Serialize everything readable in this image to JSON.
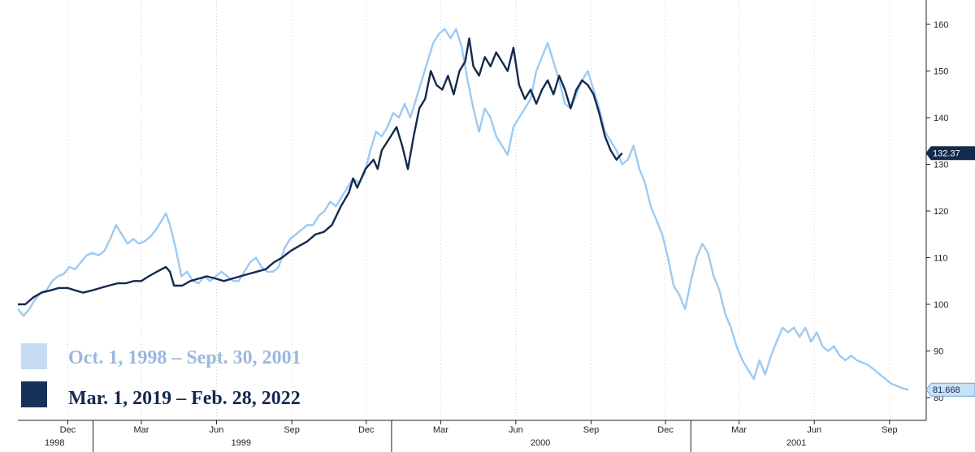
{
  "chart_data": {
    "type": "line",
    "title": "",
    "xlabel": "",
    "ylabel": "",
    "x_range": [
      "1998-10-01",
      "2001-09-30"
    ],
    "ylim": [
      78,
      168
    ],
    "y_ticks": [
      80,
      90,
      100,
      110,
      120,
      130,
      140,
      150,
      160
    ],
    "x_month_ticks": [
      {
        "label": "Dec",
        "date": "1998-12-01"
      },
      {
        "label": "Mar",
        "date": "1999-03-01"
      },
      {
        "label": "Jun",
        "date": "1999-06-01"
      },
      {
        "label": "Sep",
        "date": "1999-09-01"
      },
      {
        "label": "Dec",
        "date": "1999-12-01"
      },
      {
        "label": "Mar",
        "date": "2000-03-01"
      },
      {
        "label": "Jun",
        "date": "2000-06-01"
      },
      {
        "label": "Sep",
        "date": "2000-09-01"
      },
      {
        "label": "Dec",
        "date": "2000-12-01"
      },
      {
        "label": "Mar",
        "date": "2001-03-01"
      },
      {
        "label": "Jun",
        "date": "2001-06-01"
      },
      {
        "label": "Sep",
        "date": "2001-09-01"
      }
    ],
    "x_year_labels": [
      {
        "label": "1998",
        "date": "1998-11-15"
      },
      {
        "label": "1999",
        "date": "1999-07-01"
      },
      {
        "label": "2000",
        "date": "2000-07-01"
      },
      {
        "label": "2001",
        "date": "2001-05-10"
      }
    ],
    "year_separators": [
      "1999-01-01",
      "2000-01-01",
      "2001-01-01"
    ],
    "legend_position": "bottom-left",
    "series": [
      {
        "name": "Oct. 1, 1998 – Sept. 30, 2001",
        "color": "#9ccaf2",
        "legend_swatch_color": "#c5dbf2",
        "end_label": "81.668",
        "points": [
          [
            "1998-10-01",
            99
          ],
          [
            "1998-10-08",
            97.5
          ],
          [
            "1998-10-15",
            99
          ],
          [
            "1998-10-22",
            101
          ],
          [
            "1998-10-29",
            102.5
          ],
          [
            "1998-11-05",
            103
          ],
          [
            "1998-11-12",
            105
          ],
          [
            "1998-11-19",
            106
          ],
          [
            "1998-11-26",
            106.5
          ],
          [
            "1998-12-03",
            108
          ],
          [
            "1998-12-10",
            107.5
          ],
          [
            "1998-12-17",
            109
          ],
          [
            "1998-12-24",
            110.5
          ],
          [
            "1998-12-31",
            111
          ],
          [
            "1999-01-08",
            110.5
          ],
          [
            "1999-01-15",
            111.5
          ],
          [
            "1999-01-22",
            114
          ],
          [
            "1999-01-29",
            117
          ],
          [
            "1999-02-05",
            115
          ],
          [
            "1999-02-12",
            113
          ],
          [
            "1999-02-19",
            114
          ],
          [
            "1999-02-26",
            113
          ],
          [
            "1999-03-05",
            113.5
          ],
          [
            "1999-03-12",
            114.5
          ],
          [
            "1999-03-19",
            116
          ],
          [
            "1999-03-26",
            118
          ],
          [
            "1999-03-31",
            119.5
          ],
          [
            "1999-04-05",
            117
          ],
          [
            "1999-04-12",
            112
          ],
          [
            "1999-04-19",
            106
          ],
          [
            "1999-04-26",
            107
          ],
          [
            "1999-05-03",
            105
          ],
          [
            "1999-05-10",
            104.5
          ],
          [
            "1999-05-17",
            106
          ],
          [
            "1999-05-24",
            105
          ],
          [
            "1999-05-31",
            106
          ],
          [
            "1999-06-07",
            107
          ],
          [
            "1999-06-14",
            106
          ],
          [
            "1999-06-21",
            105
          ],
          [
            "1999-06-28",
            105
          ],
          [
            "1999-07-05",
            107
          ],
          [
            "1999-07-12",
            109
          ],
          [
            "1999-07-19",
            110
          ],
          [
            "1999-07-26",
            108
          ],
          [
            "1999-08-02",
            107
          ],
          [
            "1999-08-09",
            107
          ],
          [
            "1999-08-16",
            108
          ],
          [
            "1999-08-23",
            112
          ],
          [
            "1999-08-30",
            114
          ],
          [
            "1999-09-06",
            115
          ],
          [
            "1999-09-13",
            116
          ],
          [
            "1999-09-20",
            117
          ],
          [
            "1999-09-27",
            117
          ],
          [
            "1999-10-04",
            119
          ],
          [
            "1999-10-11",
            120
          ],
          [
            "1999-10-18",
            122
          ],
          [
            "1999-10-25",
            121
          ],
          [
            "1999-11-01",
            123
          ],
          [
            "1999-11-08",
            125
          ],
          [
            "1999-11-15",
            127
          ],
          [
            "1999-11-22",
            126
          ],
          [
            "1999-11-29",
            128
          ],
          [
            "1999-12-06",
            133
          ],
          [
            "1999-12-13",
            137
          ],
          [
            "1999-12-20",
            136
          ],
          [
            "1999-12-27",
            138
          ],
          [
            "2000-01-03",
            141
          ],
          [
            "2000-01-10",
            140
          ],
          [
            "2000-01-17",
            143
          ],
          [
            "2000-01-24",
            140
          ],
          [
            "2000-01-31",
            144
          ],
          [
            "2000-02-07",
            148
          ],
          [
            "2000-02-14",
            152
          ],
          [
            "2000-02-21",
            156
          ],
          [
            "2000-02-28",
            158
          ],
          [
            "2000-03-06",
            159
          ],
          [
            "2000-03-13",
            157
          ],
          [
            "2000-03-20",
            159
          ],
          [
            "2000-03-27",
            155
          ],
          [
            "2000-04-03",
            148
          ],
          [
            "2000-04-10",
            142
          ],
          [
            "2000-04-17",
            137
          ],
          [
            "2000-04-24",
            142
          ],
          [
            "2000-05-01",
            140
          ],
          [
            "2000-05-08",
            136
          ],
          [
            "2000-05-15",
            134
          ],
          [
            "2000-05-22",
            132
          ],
          [
            "2000-05-29",
            138
          ],
          [
            "2000-06-05",
            140
          ],
          [
            "2000-06-12",
            142
          ],
          [
            "2000-06-19",
            144
          ],
          [
            "2000-06-26",
            150
          ],
          [
            "2000-07-03",
            153
          ],
          [
            "2000-07-10",
            156
          ],
          [
            "2000-07-17",
            152
          ],
          [
            "2000-07-24",
            148
          ],
          [
            "2000-07-31",
            143
          ],
          [
            "2000-08-07",
            142
          ],
          [
            "2000-08-14",
            145
          ],
          [
            "2000-08-21",
            148
          ],
          [
            "2000-08-28",
            150
          ],
          [
            "2000-09-04",
            146
          ],
          [
            "2000-09-11",
            142
          ],
          [
            "2000-09-18",
            137
          ],
          [
            "2000-09-25",
            135
          ],
          [
            "2000-10-02",
            133
          ],
          [
            "2000-10-09",
            130
          ],
          [
            "2000-10-16",
            131
          ],
          [
            "2000-10-23",
            134
          ],
          [
            "2000-10-30",
            129
          ],
          [
            "2000-11-06",
            126
          ],
          [
            "2000-11-13",
            121
          ],
          [
            "2000-11-20",
            118
          ],
          [
            "2000-11-27",
            115
          ],
          [
            "2000-12-04",
            110
          ],
          [
            "2000-12-11",
            104
          ],
          [
            "2000-12-18",
            102
          ],
          [
            "2000-12-25",
            99
          ],
          [
            "2001-01-01",
            105
          ],
          [
            "2001-01-08",
            110
          ],
          [
            "2001-01-15",
            113
          ],
          [
            "2001-01-22",
            111
          ],
          [
            "2001-01-29",
            106
          ],
          [
            "2001-02-05",
            103
          ],
          [
            "2001-02-12",
            98
          ],
          [
            "2001-02-19",
            95
          ],
          [
            "2001-02-26",
            91
          ],
          [
            "2001-03-05",
            88
          ],
          [
            "2001-03-12",
            86
          ],
          [
            "2001-03-19",
            84
          ],
          [
            "2001-03-26",
            88
          ],
          [
            "2001-04-02",
            85
          ],
          [
            "2001-04-09",
            89
          ],
          [
            "2001-04-16",
            92
          ],
          [
            "2001-04-23",
            95
          ],
          [
            "2001-04-30",
            94
          ],
          [
            "2001-05-07",
            95
          ],
          [
            "2001-05-14",
            93
          ],
          [
            "2001-05-21",
            95
          ],
          [
            "2001-05-28",
            92
          ],
          [
            "2001-06-04",
            94
          ],
          [
            "2001-06-11",
            91
          ],
          [
            "2001-06-18",
            90
          ],
          [
            "2001-06-25",
            91
          ],
          [
            "2001-07-02",
            89
          ],
          [
            "2001-07-09",
            88
          ],
          [
            "2001-07-16",
            89
          ],
          [
            "2001-07-23",
            88
          ],
          [
            "2001-07-30",
            87.5
          ],
          [
            "2001-08-06",
            87
          ],
          [
            "2001-08-13",
            86
          ],
          [
            "2001-08-20",
            85
          ],
          [
            "2001-08-27",
            84
          ],
          [
            "2001-09-03",
            83
          ],
          [
            "2001-09-10",
            82.5
          ],
          [
            "2001-09-17",
            82
          ],
          [
            "2001-09-24",
            81.7
          ]
        ]
      },
      {
        "name": "Mar. 1, 2019 – Feb. 28, 2022",
        "color": "#14294e",
        "legend_swatch_color": "#173258",
        "end_label": "132.37",
        "points": [
          [
            "1998-10-01",
            100
          ],
          [
            "1998-10-10",
            100
          ],
          [
            "1998-10-20",
            101.5
          ],
          [
            "1998-10-30",
            102.5
          ],
          [
            "1998-11-10",
            103
          ],
          [
            "1998-11-20",
            103.5
          ],
          [
            "1998-12-01",
            103.5
          ],
          [
            "1998-12-10",
            103
          ],
          [
            "1998-12-20",
            102.5
          ],
          [
            "1998-12-31",
            103
          ],
          [
            "1999-01-10",
            103.5
          ],
          [
            "1999-01-20",
            104
          ],
          [
            "1999-01-31",
            104.5
          ],
          [
            "1999-02-10",
            104.5
          ],
          [
            "1999-02-20",
            105
          ],
          [
            "1999-03-01",
            105
          ],
          [
            "1999-03-10",
            106
          ],
          [
            "1999-03-20",
            107
          ],
          [
            "1999-03-31",
            108
          ],
          [
            "1999-04-05",
            107
          ],
          [
            "1999-04-10",
            104
          ],
          [
            "1999-04-20",
            104
          ],
          [
            "1999-04-30",
            105
          ],
          [
            "1999-05-10",
            105.5
          ],
          [
            "1999-05-20",
            106
          ],
          [
            "1999-05-31",
            105.5
          ],
          [
            "1999-06-10",
            105
          ],
          [
            "1999-06-20",
            105.5
          ],
          [
            "1999-06-30",
            106
          ],
          [
            "1999-07-10",
            106.5
          ],
          [
            "1999-07-20",
            107
          ],
          [
            "1999-07-31",
            107.5
          ],
          [
            "1999-08-10",
            109
          ],
          [
            "1999-08-20",
            110
          ],
          [
            "1999-08-31",
            111.5
          ],
          [
            "1999-09-10",
            112.5
          ],
          [
            "1999-09-20",
            113.5
          ],
          [
            "1999-09-30",
            115
          ],
          [
            "1999-10-10",
            115.5
          ],
          [
            "1999-10-20",
            117
          ],
          [
            "1999-10-31",
            121
          ],
          [
            "1999-11-10",
            124
          ],
          [
            "1999-11-15",
            127
          ],
          [
            "1999-11-20",
            125
          ],
          [
            "1999-11-30",
            129
          ],
          [
            "1999-12-10",
            131
          ],
          [
            "1999-12-15",
            129
          ],
          [
            "1999-12-20",
            133
          ],
          [
            "1999-12-31",
            136
          ],
          [
            "2000-01-07",
            138
          ],
          [
            "2000-01-14",
            134
          ],
          [
            "2000-01-21",
            129
          ],
          [
            "2000-01-28",
            136
          ],
          [
            "2000-02-04",
            142
          ],
          [
            "2000-02-11",
            144
          ],
          [
            "2000-02-18",
            150
          ],
          [
            "2000-02-25",
            147
          ],
          [
            "2000-03-03",
            146
          ],
          [
            "2000-03-10",
            149
          ],
          [
            "2000-03-17",
            145
          ],
          [
            "2000-03-24",
            150
          ],
          [
            "2000-03-31",
            152
          ],
          [
            "2000-04-05",
            157
          ],
          [
            "2000-04-10",
            151
          ],
          [
            "2000-04-17",
            149
          ],
          [
            "2000-04-24",
            153
          ],
          [
            "2000-05-01",
            151
          ],
          [
            "2000-05-08",
            154
          ],
          [
            "2000-05-15",
            152
          ],
          [
            "2000-05-22",
            150
          ],
          [
            "2000-05-29",
            155
          ],
          [
            "2000-06-05",
            147
          ],
          [
            "2000-06-12",
            144
          ],
          [
            "2000-06-19",
            146
          ],
          [
            "2000-06-26",
            143
          ],
          [
            "2000-07-03",
            146
          ],
          [
            "2000-07-10",
            148
          ],
          [
            "2000-07-17",
            145
          ],
          [
            "2000-07-24",
            149
          ],
          [
            "2000-07-31",
            146
          ],
          [
            "2000-08-07",
            142
          ],
          [
            "2000-08-14",
            146
          ],
          [
            "2000-08-21",
            148
          ],
          [
            "2000-08-28",
            147
          ],
          [
            "2000-09-04",
            145
          ],
          [
            "2000-09-11",
            141
          ],
          [
            "2000-09-18",
            136
          ],
          [
            "2000-09-25",
            133
          ],
          [
            "2000-10-02",
            131
          ],
          [
            "2000-10-09",
            132.4
          ]
        ]
      }
    ]
  }
}
